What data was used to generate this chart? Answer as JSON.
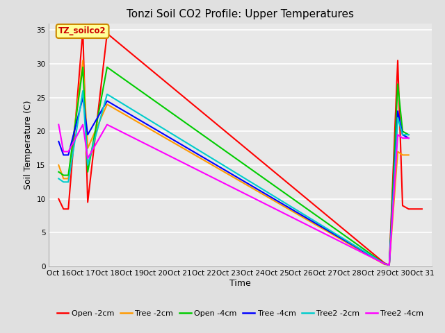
{
  "title": "Tonzi Soil CO2 Profile: Upper Temperatures",
  "xlabel": "Time",
  "ylabel": "Soil Temperature (C)",
  "annotation": "TZ_soilco2",
  "xlim": [
    15.6,
    31.4
  ],
  "ylim": [
    0,
    36
  ],
  "yticks": [
    0,
    5,
    10,
    15,
    20,
    25,
    30,
    35
  ],
  "xtick_positions": [
    16,
    17,
    18,
    19,
    20,
    21,
    22,
    23,
    24,
    25,
    26,
    27,
    28,
    29,
    30,
    31
  ],
  "background_color": "#e0e0e0",
  "plot_bg_color": "#e8e8e8",
  "title_fontsize": 11,
  "axis_label_fontsize": 9,
  "tick_fontsize": 7.5,
  "legend_fontsize": 8,
  "series": [
    {
      "label": "Open -2cm",
      "color": "#ff0000",
      "x": [
        16.0,
        16.2,
        16.4,
        17.0,
        17.2,
        18.0,
        29.45,
        29.65,
        30.0,
        30.2,
        30.45,
        31.0
      ],
      "y": [
        10.0,
        8.5,
        8.5,
        35.0,
        9.5,
        34.5,
        0.5,
        0.2,
        30.5,
        9.0,
        8.5,
        8.5
      ]
    },
    {
      "label": "Tree -2cm",
      "color": "#ff9900",
      "x": [
        16.0,
        16.2,
        16.4,
        17.0,
        17.2,
        18.0,
        29.45,
        29.65,
        30.0,
        30.2,
        30.45
      ],
      "y": [
        15.0,
        13.0,
        13.0,
        30.5,
        17.5,
        24.0,
        0.3,
        0.2,
        17.0,
        16.5,
        16.5
      ]
    },
    {
      "label": "Open -4cm",
      "color": "#00cc00",
      "x": [
        16.0,
        16.2,
        16.4,
        17.0,
        17.2,
        18.0,
        29.45,
        29.65,
        30.0,
        30.2,
        30.45
      ],
      "y": [
        14.0,
        13.5,
        13.5,
        29.5,
        14.0,
        29.5,
        0.4,
        0.2,
        27.0,
        20.0,
        19.5
      ]
    },
    {
      "label": "Tree -4cm",
      "color": "#0000ff",
      "x": [
        16.0,
        16.2,
        16.4,
        17.0,
        17.2,
        18.0,
        29.45,
        29.65,
        30.0,
        30.2,
        30.45
      ],
      "y": [
        18.5,
        16.5,
        16.5,
        25.0,
        19.5,
        24.5,
        0.4,
        0.2,
        23.0,
        19.5,
        19.0
      ]
    },
    {
      "label": "Tree2 -2cm",
      "color": "#00cccc",
      "x": [
        16.0,
        16.2,
        16.4,
        17.0,
        17.2,
        18.0,
        29.45,
        29.65,
        30.0,
        30.2,
        30.45
      ],
      "y": [
        13.0,
        12.5,
        12.5,
        26.0,
        15.0,
        25.5,
        0.4,
        0.2,
        22.0,
        19.5,
        19.5
      ]
    },
    {
      "label": "Tree2 -4cm",
      "color": "#ff00ff",
      "x": [
        16.0,
        16.2,
        16.4,
        17.0,
        17.2,
        18.0,
        29.45,
        29.65,
        30.0,
        30.2,
        30.45
      ],
      "y": [
        21.0,
        17.0,
        17.0,
        21.0,
        16.0,
        21.0,
        0.4,
        0.2,
        19.5,
        19.0,
        19.0
      ]
    }
  ]
}
